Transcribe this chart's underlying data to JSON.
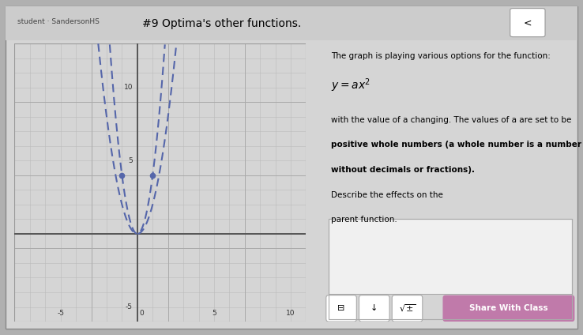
{
  "title": "#9 Optima's other functions.",
  "page_bg": "#b0b0b0",
  "screen_bg": "#d5d5d5",
  "graph_bg": "#e8e8e8",
  "right_panel_bg": "#d8d8d8",
  "grid_color": "#bbbbbb",
  "axis_color": "#555555",
  "curve_color": "#5566aa",
  "curve_lw": 1.5,
  "dot_color": "#5566aa",
  "dot_size": 20,
  "xlim": [
    -8,
    11
  ],
  "ylim": [
    -6,
    13
  ],
  "xticks": [
    -5,
    0,
    5,
    10
  ],
  "yticks": [
    -5,
    0,
    5,
    10
  ],
  "a_values": [
    2,
    4
  ],
  "dot_points": [
    [
      -1,
      4
    ],
    [
      1,
      4
    ]
  ],
  "share_btn_color": "#c07aaa",
  "share_btn_text": "Share With Class",
  "header_text": "student · SandersonHS",
  "nav_btn_text": "<"
}
